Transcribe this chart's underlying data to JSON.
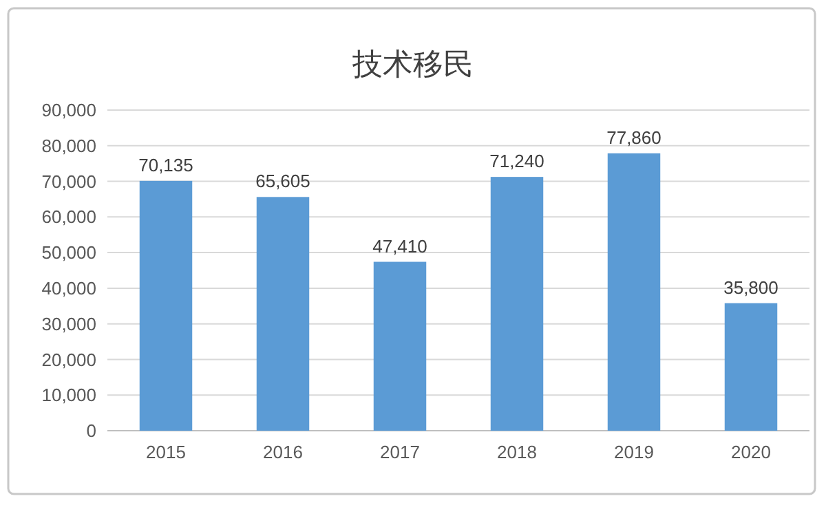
{
  "chart_data": {
    "type": "bar",
    "title": "技术移民",
    "categories": [
      "2015",
      "2016",
      "2017",
      "2018",
      "2019",
      "2020"
    ],
    "values": [
      70135,
      65605,
      47410,
      71240,
      77860,
      35800
    ],
    "color": "#5b9bd5",
    "ylim": [
      0,
      90000
    ],
    "yticks": [
      {
        "value": 0,
        "label": "0"
      },
      {
        "value": 10000,
        "label": "10,000"
      },
      {
        "value": 20000,
        "label": "20,000"
      },
      {
        "value": 30000,
        "label": "30,000"
      },
      {
        "value": 40000,
        "label": "40,000"
      },
      {
        "value": 50000,
        "label": "50,000"
      },
      {
        "value": 60000,
        "label": "60,000"
      },
      {
        "value": 70000,
        "label": "70,000"
      },
      {
        "value": 80000,
        "label": "80,000"
      },
      {
        "value": 90000,
        "label": "90,000"
      }
    ],
    "value_labels": [
      "70,135",
      "65,605",
      "47,410",
      "71,240",
      "77,860",
      "35,800"
    ],
    "grid": true
  }
}
